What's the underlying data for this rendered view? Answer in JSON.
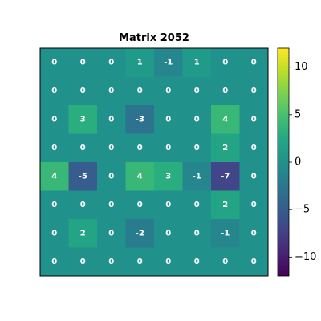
{
  "chart_data": {
    "type": "heatmap",
    "title": "Matrix 2052",
    "colormap": "viridis",
    "vmin": -12,
    "vmax": 12,
    "rows": 8,
    "cols": 8,
    "matrix": [
      [
        0,
        0,
        0,
        1,
        -1,
        1,
        0,
        0
      ],
      [
        0,
        0,
        0,
        0,
        0,
        0,
        0,
        0
      ],
      [
        0,
        3,
        0,
        -3,
        0,
        0,
        4,
        0
      ],
      [
        0,
        0,
        0,
        0,
        0,
        0,
        2,
        0
      ],
      [
        4,
        -5,
        0,
        4,
        3,
        -1,
        -7,
        0
      ],
      [
        0,
        0,
        0,
        0,
        0,
        0,
        2,
        0
      ],
      [
        0,
        2,
        0,
        -2,
        0,
        0,
        -1,
        0
      ],
      [
        0,
        0,
        0,
        0,
        0,
        0,
        0,
        0
      ]
    ],
    "colorbar": {
      "ticks": [
        10,
        5,
        0,
        -5,
        -10
      ],
      "tick_labels": [
        "10",
        "5",
        "0",
        "−5",
        "−10"
      ]
    },
    "xlabel": "",
    "ylabel": "",
    "grid": false
  }
}
